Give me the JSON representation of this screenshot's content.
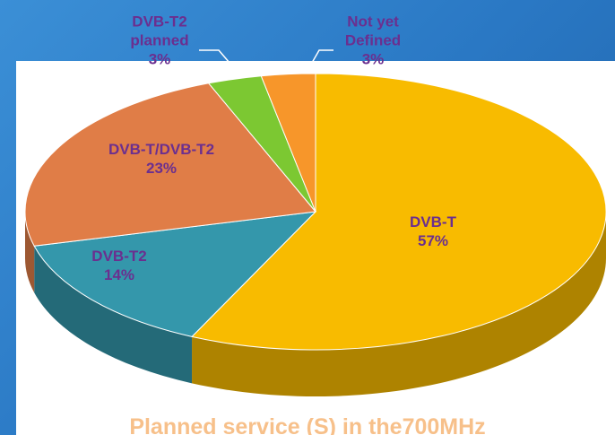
{
  "chart_data": {
    "type": "pie",
    "title": "Planned service (S) in the700MHz",
    "categories": [
      "DVB-T",
      "DVB-T2",
      "DVB-T/DVB-T2",
      "DVB-T2 planned",
      "Not yet Defined"
    ],
    "values": [
      57,
      14,
      23,
      3,
      3
    ],
    "value_labels": [
      "57%",
      "14%",
      "23%",
      "3%",
      "3%"
    ],
    "colors": [
      "#f8bb00",
      "#3497ab",
      "#e07d47",
      "#7cc832",
      "#f7962a"
    ]
  }
}
